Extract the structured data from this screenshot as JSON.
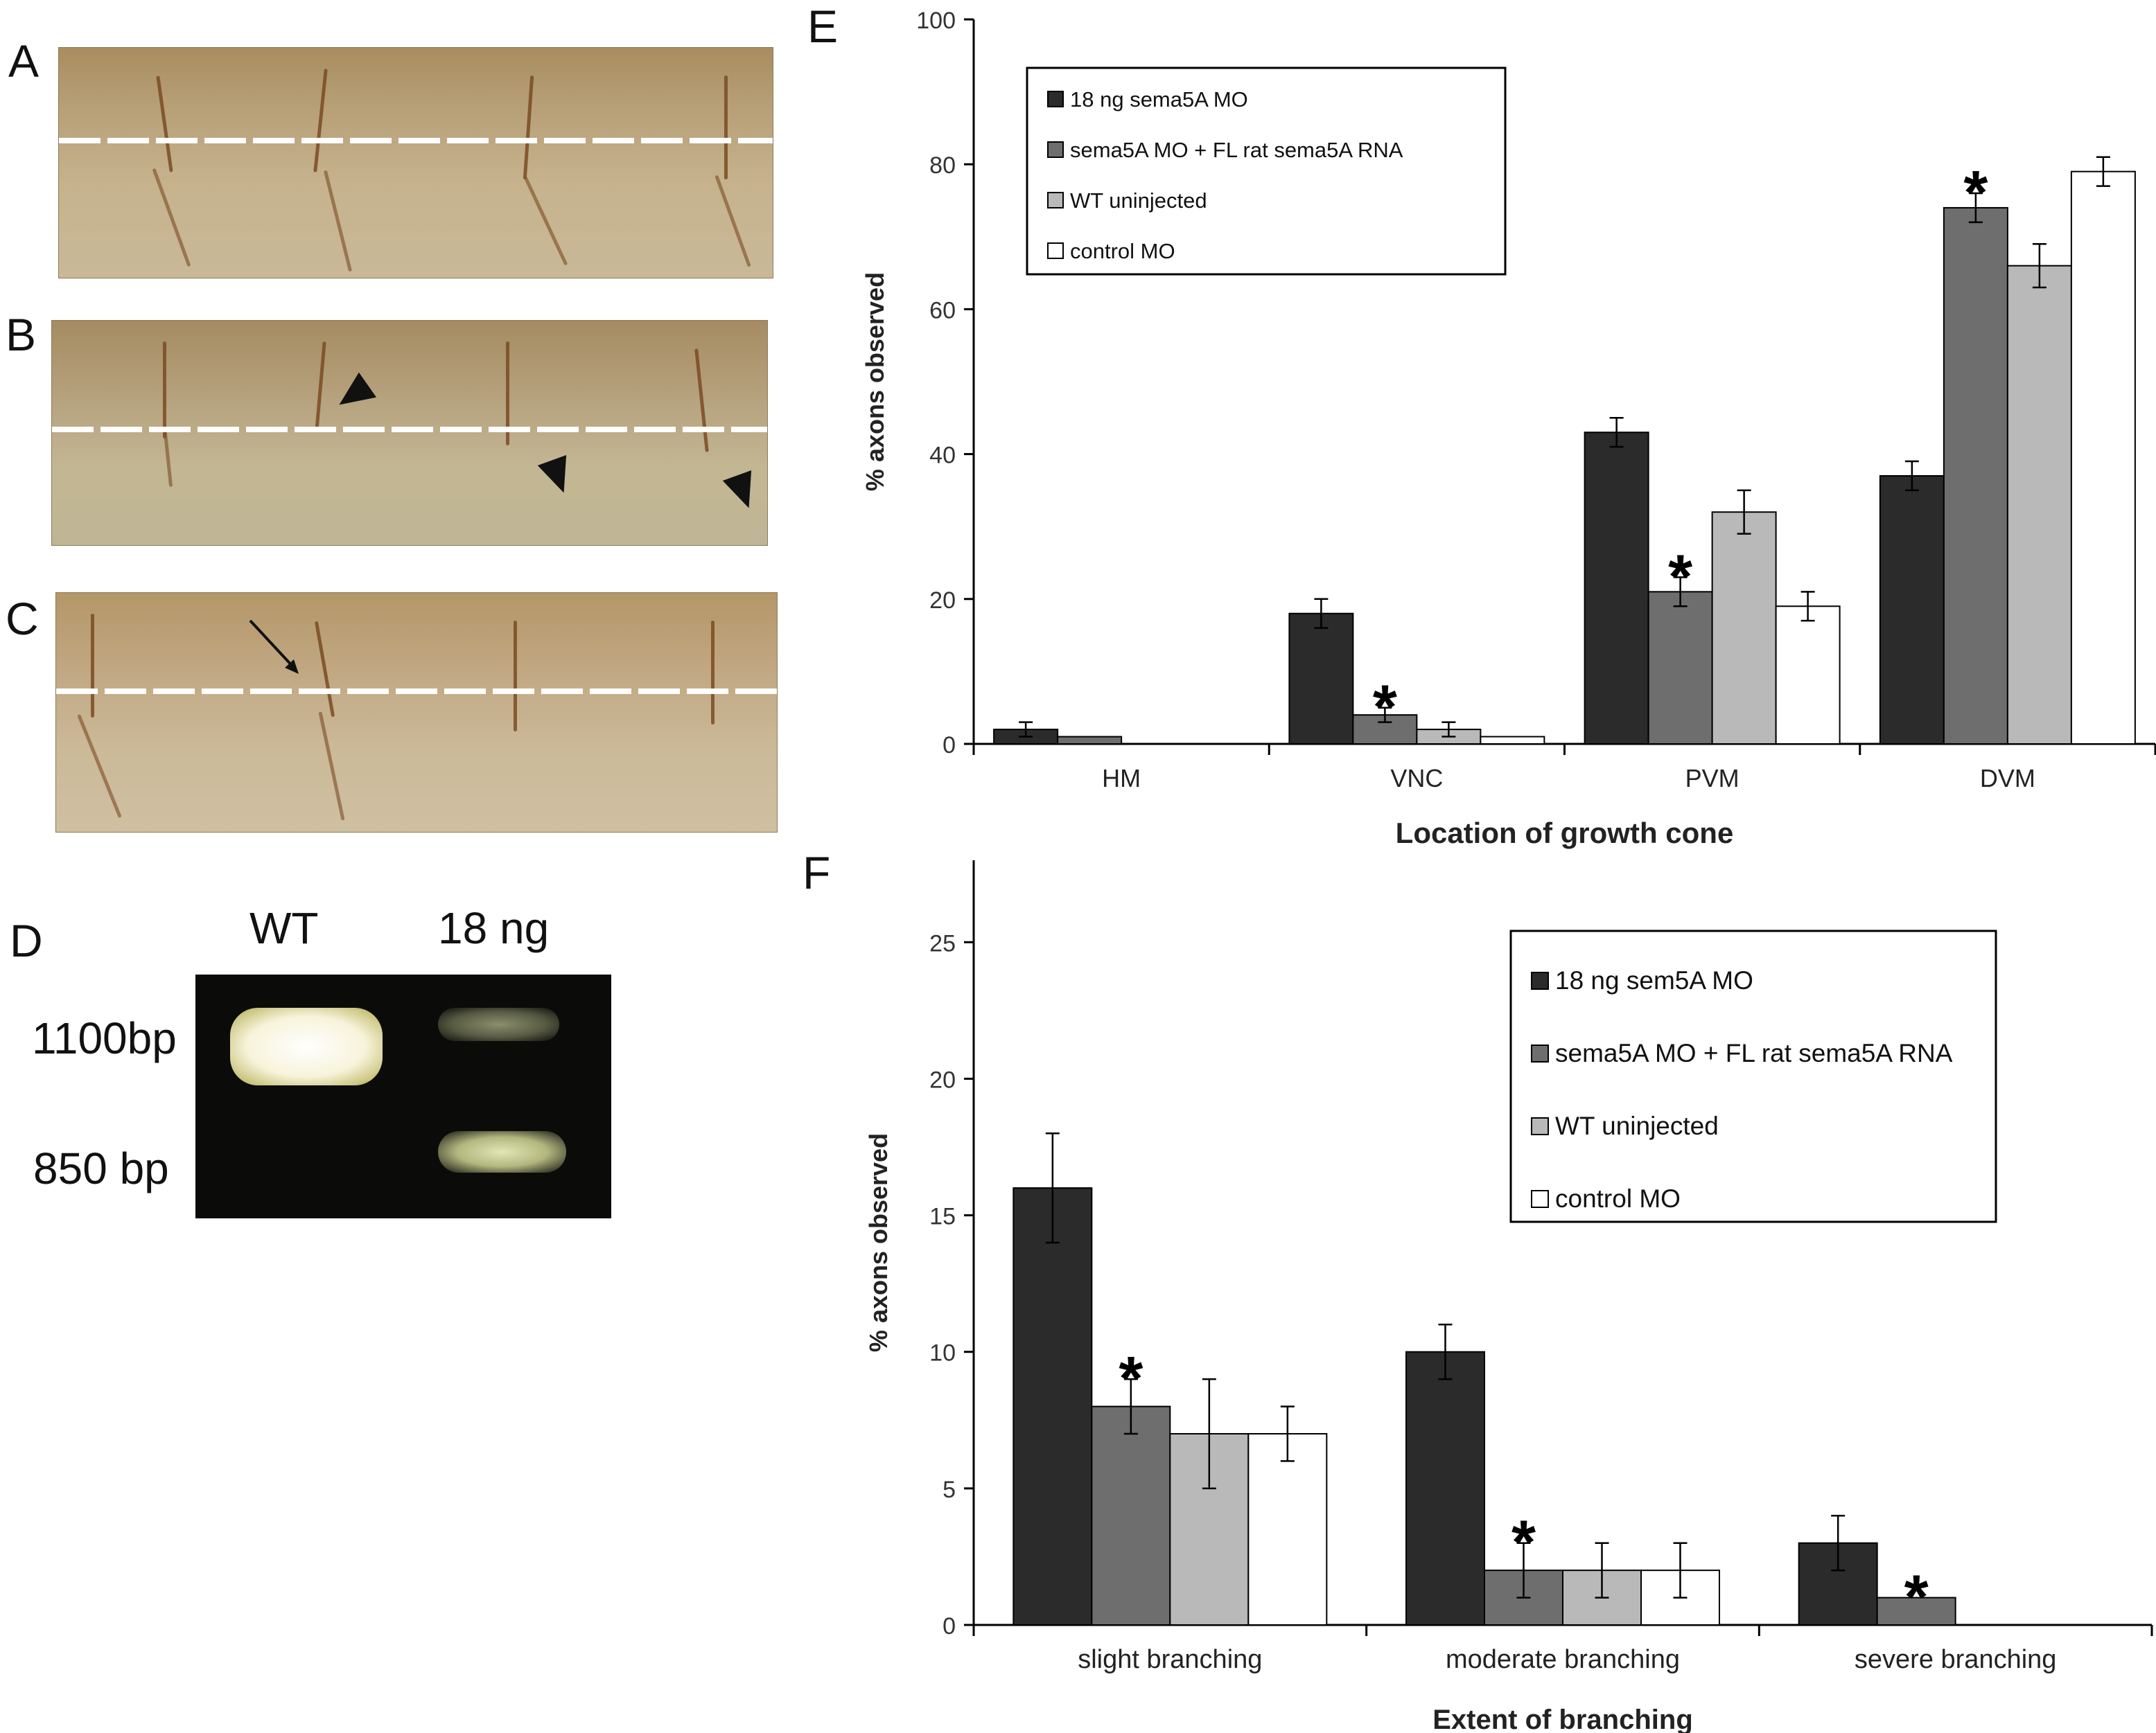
{
  "panels": {
    "A": "A",
    "B": "B",
    "C": "C",
    "D": "D",
    "E": "E",
    "F": "F"
  },
  "gel": {
    "lane_labels": [
      "WT",
      "18 ng"
    ],
    "size_labels": [
      "1100bp",
      "850 bp"
    ]
  },
  "chart_data": [
    {
      "panel": "E",
      "type": "bar",
      "xlabel": "Location of growth cone",
      "ylabel": "% axons observed",
      "categories": [
        "HM",
        "VNC",
        "PVM",
        "DVM"
      ],
      "ylim": [
        0,
        100
      ],
      "yticks": [
        0,
        20,
        40,
        60,
        80,
        100
      ],
      "legend_position": "top-left",
      "series": [
        {
          "name": "18 ng sema5A MO",
          "color": "#2b2b2b",
          "values": [
            2,
            18,
            43,
            37
          ],
          "errors": [
            1,
            2,
            2,
            2
          ]
        },
        {
          "name": "sema5A MO + FL rat sema5A RNA",
          "color": "#6e6e6e",
          "values": [
            1,
            4,
            21,
            74
          ],
          "errors": [
            0,
            1,
            2,
            2
          ]
        },
        {
          "name": "WT uninjected",
          "color": "#b9b9b9",
          "values": [
            0,
            2,
            32,
            66
          ],
          "errors": [
            0,
            1,
            3,
            3
          ]
        },
        {
          "name": "control MO",
          "color": "#ffffff",
          "values": [
            0,
            1,
            19,
            79
          ],
          "errors": [
            0,
            0,
            2,
            2
          ]
        }
      ],
      "annotations": [
        {
          "text": "*",
          "category": "VNC",
          "series": 1
        },
        {
          "text": "*",
          "category": "PVM",
          "series": 1
        },
        {
          "text": "*",
          "category": "DVM",
          "series": 1
        }
      ]
    },
    {
      "panel": "F",
      "type": "bar",
      "xlabel": "Extent of branching",
      "ylabel": "% axons observed",
      "categories": [
        "slight branching",
        "moderate branching",
        "severe branching"
      ],
      "ylim": [
        0,
        28
      ],
      "yticks": [
        0,
        5,
        10,
        15,
        20,
        25
      ],
      "legend_position": "top-right",
      "series": [
        {
          "name": "18 ng sem5A MO",
          "color": "#2b2b2b",
          "values": [
            16,
            10,
            3
          ],
          "errors": [
            2,
            1,
            1
          ]
        },
        {
          "name": "sema5A MO + FL rat sema5A RNA",
          "color": "#6e6e6e",
          "values": [
            8,
            2,
            1
          ],
          "errors": [
            1,
            1,
            0
          ]
        },
        {
          "name": "WT uninjected",
          "color": "#b9b9b9",
          "values": [
            7,
            2,
            0
          ],
          "errors": [
            2,
            1,
            0
          ]
        },
        {
          "name": "control MO",
          "color": "#ffffff",
          "values": [
            7,
            2,
            0
          ],
          "errors": [
            1,
            1,
            0
          ]
        }
      ],
      "annotations": [
        {
          "text": "*",
          "category": "slight branching",
          "series": 1
        },
        {
          "text": "*",
          "category": "moderate branching",
          "series": 1
        },
        {
          "text": "*",
          "category": "severe branching",
          "series": 1
        }
      ]
    }
  ]
}
